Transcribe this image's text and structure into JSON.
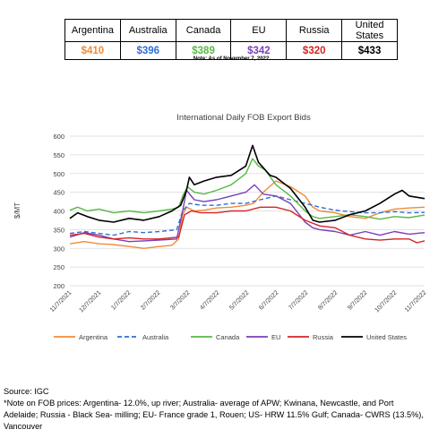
{
  "price_table": {
    "countries": [
      "Argentina",
      "Australia",
      "Canada",
      "EU",
      "Russia",
      "United States"
    ],
    "prices": [
      "$410",
      "$396",
      "$389",
      "$342",
      "$320",
      "$433"
    ],
    "colors": [
      "#f28a36",
      "#2e6fd6",
      "#59b847",
      "#7a3fb8",
      "#d42424",
      "#000000"
    ]
  },
  "note": "Note: As of November 7, 2022",
  "source": {
    "line1": "Source: IGC",
    "line2": "*Note on FOB prices: Argentina- 12.0%, up river; Australia- average of APW; Kwinana, Newcastle, and Port",
    "line3": "Adelaide; Russia - Black Sea- milling; EU- France grade 1, Rouen; US- HRW 11.5% Gulf; Canada- CWRS (13.5%),",
    "line4": "Vancouver"
  },
  "chart_data": {
    "type": "line",
    "title": "International Daily FOB Export Bids",
    "ylabel": "$/MT",
    "xlabel": "",
    "ylim": [
      200,
      600
    ],
    "yticks": [
      200,
      250,
      300,
      350,
      400,
      450,
      500,
      550,
      600
    ],
    "xlim": [
      "2021-11-07",
      "2022-11-07"
    ],
    "xticks": [
      "11/7/2021",
      "12/7/2021",
      "1/7/2022",
      "2/7/2022",
      "3/7/2022",
      "4/7/2022",
      "5/7/2022",
      "6/7/2022",
      "7/7/2022",
      "8/7/2022",
      "9/7/2022",
      "10/7/2022",
      "11/7/2022"
    ],
    "grid": "horizontal",
    "legend_position": "bottom",
    "series": [
      {
        "name": "Argentina",
        "color": "#f28a36",
        "dash": "solid",
        "points": [
          [
            "2021-11-07",
            312
          ],
          [
            "2021-11-22",
            318
          ],
          [
            "2021-12-07",
            312
          ],
          [
            "2021-12-22",
            310
          ],
          [
            "2022-01-07",
            305
          ],
          [
            "2022-01-22",
            300
          ],
          [
            "2022-02-07",
            305
          ],
          [
            "2022-02-20",
            308
          ],
          [
            "2022-02-27",
            325
          ],
          [
            "2022-03-03",
            390
          ],
          [
            "2022-03-07",
            410
          ],
          [
            "2022-03-15",
            400
          ],
          [
            "2022-03-25",
            402
          ],
          [
            "2022-04-07",
            408
          ],
          [
            "2022-04-22",
            410
          ],
          [
            "2022-05-07",
            415
          ],
          [
            "2022-05-15",
            420
          ],
          [
            "2022-05-25",
            450
          ],
          [
            "2022-06-07",
            480
          ],
          [
            "2022-06-22",
            465
          ],
          [
            "2022-07-07",
            440
          ],
          [
            "2022-07-15",
            410
          ],
          [
            "2022-07-22",
            400
          ],
          [
            "2022-08-07",
            395
          ],
          [
            "2022-08-22",
            385
          ],
          [
            "2022-09-07",
            380
          ],
          [
            "2022-09-22",
            395
          ],
          [
            "2022-10-07",
            405
          ],
          [
            "2022-10-22",
            408
          ],
          [
            "2022-11-07",
            410
          ]
        ]
      },
      {
        "name": "Australia",
        "color": "#2e6fd6",
        "dash": "dashed",
        "points": [
          [
            "2021-11-07",
            340
          ],
          [
            "2021-11-22",
            345
          ],
          [
            "2021-12-07",
            340
          ],
          [
            "2021-12-22",
            335
          ],
          [
            "2022-01-07",
            345
          ],
          [
            "2022-01-22",
            342
          ],
          [
            "2022-02-07",
            345
          ],
          [
            "2022-02-25",
            350
          ],
          [
            "2022-03-03",
            400
          ],
          [
            "2022-03-10",
            420
          ],
          [
            "2022-03-22",
            415
          ],
          [
            "2022-04-07",
            415
          ],
          [
            "2022-04-22",
            420
          ],
          [
            "2022-05-07",
            420
          ],
          [
            "2022-05-22",
            430
          ],
          [
            "2022-06-07",
            440
          ],
          [
            "2022-06-22",
            430
          ],
          [
            "2022-07-07",
            420
          ],
          [
            "2022-07-22",
            410
          ],
          [
            "2022-08-07",
            402
          ],
          [
            "2022-08-22",
            398
          ],
          [
            "2022-09-07",
            395
          ],
          [
            "2022-09-22",
            395
          ],
          [
            "2022-10-07",
            398
          ],
          [
            "2022-10-22",
            395
          ],
          [
            "2022-11-07",
            396
          ]
        ]
      },
      {
        "name": "Canada",
        "color": "#59b847",
        "dash": "solid",
        "points": [
          [
            "2021-11-07",
            402
          ],
          [
            "2021-11-15",
            410
          ],
          [
            "2021-11-25",
            400
          ],
          [
            "2021-12-07",
            405
          ],
          [
            "2021-12-22",
            395
          ],
          [
            "2022-01-07",
            400
          ],
          [
            "2022-01-22",
            395
          ],
          [
            "2022-02-07",
            400
          ],
          [
            "2022-02-20",
            405
          ],
          [
            "2022-02-27",
            410
          ],
          [
            "2022-03-03",
            440
          ],
          [
            "2022-03-08",
            465
          ],
          [
            "2022-03-15",
            450
          ],
          [
            "2022-03-25",
            445
          ],
          [
            "2022-04-07",
            455
          ],
          [
            "2022-04-22",
            470
          ],
          [
            "2022-05-07",
            500
          ],
          [
            "2022-05-14",
            540
          ],
          [
            "2022-05-20",
            520
          ],
          [
            "2022-05-27",
            510
          ],
          [
            "2022-06-07",
            470
          ],
          [
            "2022-06-22",
            440
          ],
          [
            "2022-07-07",
            400
          ],
          [
            "2022-07-15",
            385
          ],
          [
            "2022-07-22",
            380
          ],
          [
            "2022-08-07",
            385
          ],
          [
            "2022-08-22",
            390
          ],
          [
            "2022-09-07",
            385
          ],
          [
            "2022-09-22",
            378
          ],
          [
            "2022-10-07",
            385
          ],
          [
            "2022-10-22",
            382
          ],
          [
            "2022-11-07",
            389
          ]
        ]
      },
      {
        "name": "EU",
        "color": "#7a3fb8",
        "dash": "solid",
        "points": [
          [
            "2021-11-07",
            330
          ],
          [
            "2021-11-22",
            342
          ],
          [
            "2021-12-07",
            335
          ],
          [
            "2021-12-22",
            325
          ],
          [
            "2022-01-07",
            318
          ],
          [
            "2022-01-22",
            320
          ],
          [
            "2022-02-07",
            322
          ],
          [
            "2022-02-25",
            325
          ],
          [
            "2022-03-03",
            400
          ],
          [
            "2022-03-07",
            455
          ],
          [
            "2022-03-15",
            430
          ],
          [
            "2022-03-25",
            425
          ],
          [
            "2022-04-07",
            430
          ],
          [
            "2022-04-22",
            440
          ],
          [
            "2022-05-07",
            450
          ],
          [
            "2022-05-16",
            470
          ],
          [
            "2022-05-25",
            445
          ],
          [
            "2022-06-07",
            440
          ],
          [
            "2022-06-22",
            420
          ],
          [
            "2022-07-07",
            370
          ],
          [
            "2022-07-15",
            355
          ],
          [
            "2022-07-22",
            350
          ],
          [
            "2022-08-07",
            345
          ],
          [
            "2022-08-22",
            335
          ],
          [
            "2022-09-07",
            345
          ],
          [
            "2022-09-22",
            335
          ],
          [
            "2022-10-07",
            345
          ],
          [
            "2022-10-22",
            338
          ],
          [
            "2022-11-07",
            342
          ]
        ]
      },
      {
        "name": "Russia",
        "color": "#d42424",
        "dash": "solid",
        "points": [
          [
            "2021-11-07",
            335
          ],
          [
            "2021-11-22",
            340
          ],
          [
            "2021-12-07",
            330
          ],
          [
            "2021-12-22",
            325
          ],
          [
            "2022-01-07",
            328
          ],
          [
            "2022-01-22",
            325
          ],
          [
            "2022-02-07",
            325
          ],
          [
            "2022-02-27",
            330
          ],
          [
            "2022-03-05",
            390
          ],
          [
            "2022-03-12",
            400
          ],
          [
            "2022-03-22",
            395
          ],
          [
            "2022-04-07",
            395
          ],
          [
            "2022-04-22",
            400
          ],
          [
            "2022-05-07",
            400
          ],
          [
            "2022-05-22",
            410
          ],
          [
            "2022-06-07",
            410
          ],
          [
            "2022-06-22",
            400
          ],
          [
            "2022-07-07",
            375
          ],
          [
            "2022-07-22",
            360
          ],
          [
            "2022-08-07",
            355
          ],
          [
            "2022-08-22",
            335
          ],
          [
            "2022-09-07",
            325
          ],
          [
            "2022-09-22",
            322
          ],
          [
            "2022-10-07",
            325
          ],
          [
            "2022-10-22",
            325
          ],
          [
            "2022-10-30",
            315
          ],
          [
            "2022-11-07",
            320
          ]
        ]
      },
      {
        "name": "United States",
        "color": "#000000",
        "dash": "solid",
        "points": [
          [
            "2021-11-07",
            380
          ],
          [
            "2021-11-15",
            395
          ],
          [
            "2021-11-25",
            385
          ],
          [
            "2021-12-07",
            375
          ],
          [
            "2021-12-22",
            370
          ],
          [
            "2022-01-07",
            380
          ],
          [
            "2022-01-22",
            375
          ],
          [
            "2022-02-07",
            385
          ],
          [
            "2022-02-20",
            400
          ],
          [
            "2022-03-01",
            415
          ],
          [
            "2022-03-07",
            455
          ],
          [
            "2022-03-10",
            490
          ],
          [
            "2022-03-15",
            470
          ],
          [
            "2022-03-25",
            480
          ],
          [
            "2022-04-07",
            490
          ],
          [
            "2022-04-22",
            495
          ],
          [
            "2022-05-07",
            520
          ],
          [
            "2022-05-14",
            575
          ],
          [
            "2022-05-20",
            530
          ],
          [
            "2022-06-01",
            495
          ],
          [
            "2022-06-07",
            490
          ],
          [
            "2022-06-22",
            460
          ],
          [
            "2022-07-07",
            410
          ],
          [
            "2022-07-15",
            375
          ],
          [
            "2022-07-22",
            370
          ],
          [
            "2022-08-07",
            375
          ],
          [
            "2022-08-22",
            390
          ],
          [
            "2022-09-07",
            400
          ],
          [
            "2022-09-22",
            420
          ],
          [
            "2022-10-07",
            445
          ],
          [
            "2022-10-15",
            455
          ],
          [
            "2022-10-22",
            440
          ],
          [
            "2022-11-07",
            433
          ]
        ]
      }
    ]
  }
}
